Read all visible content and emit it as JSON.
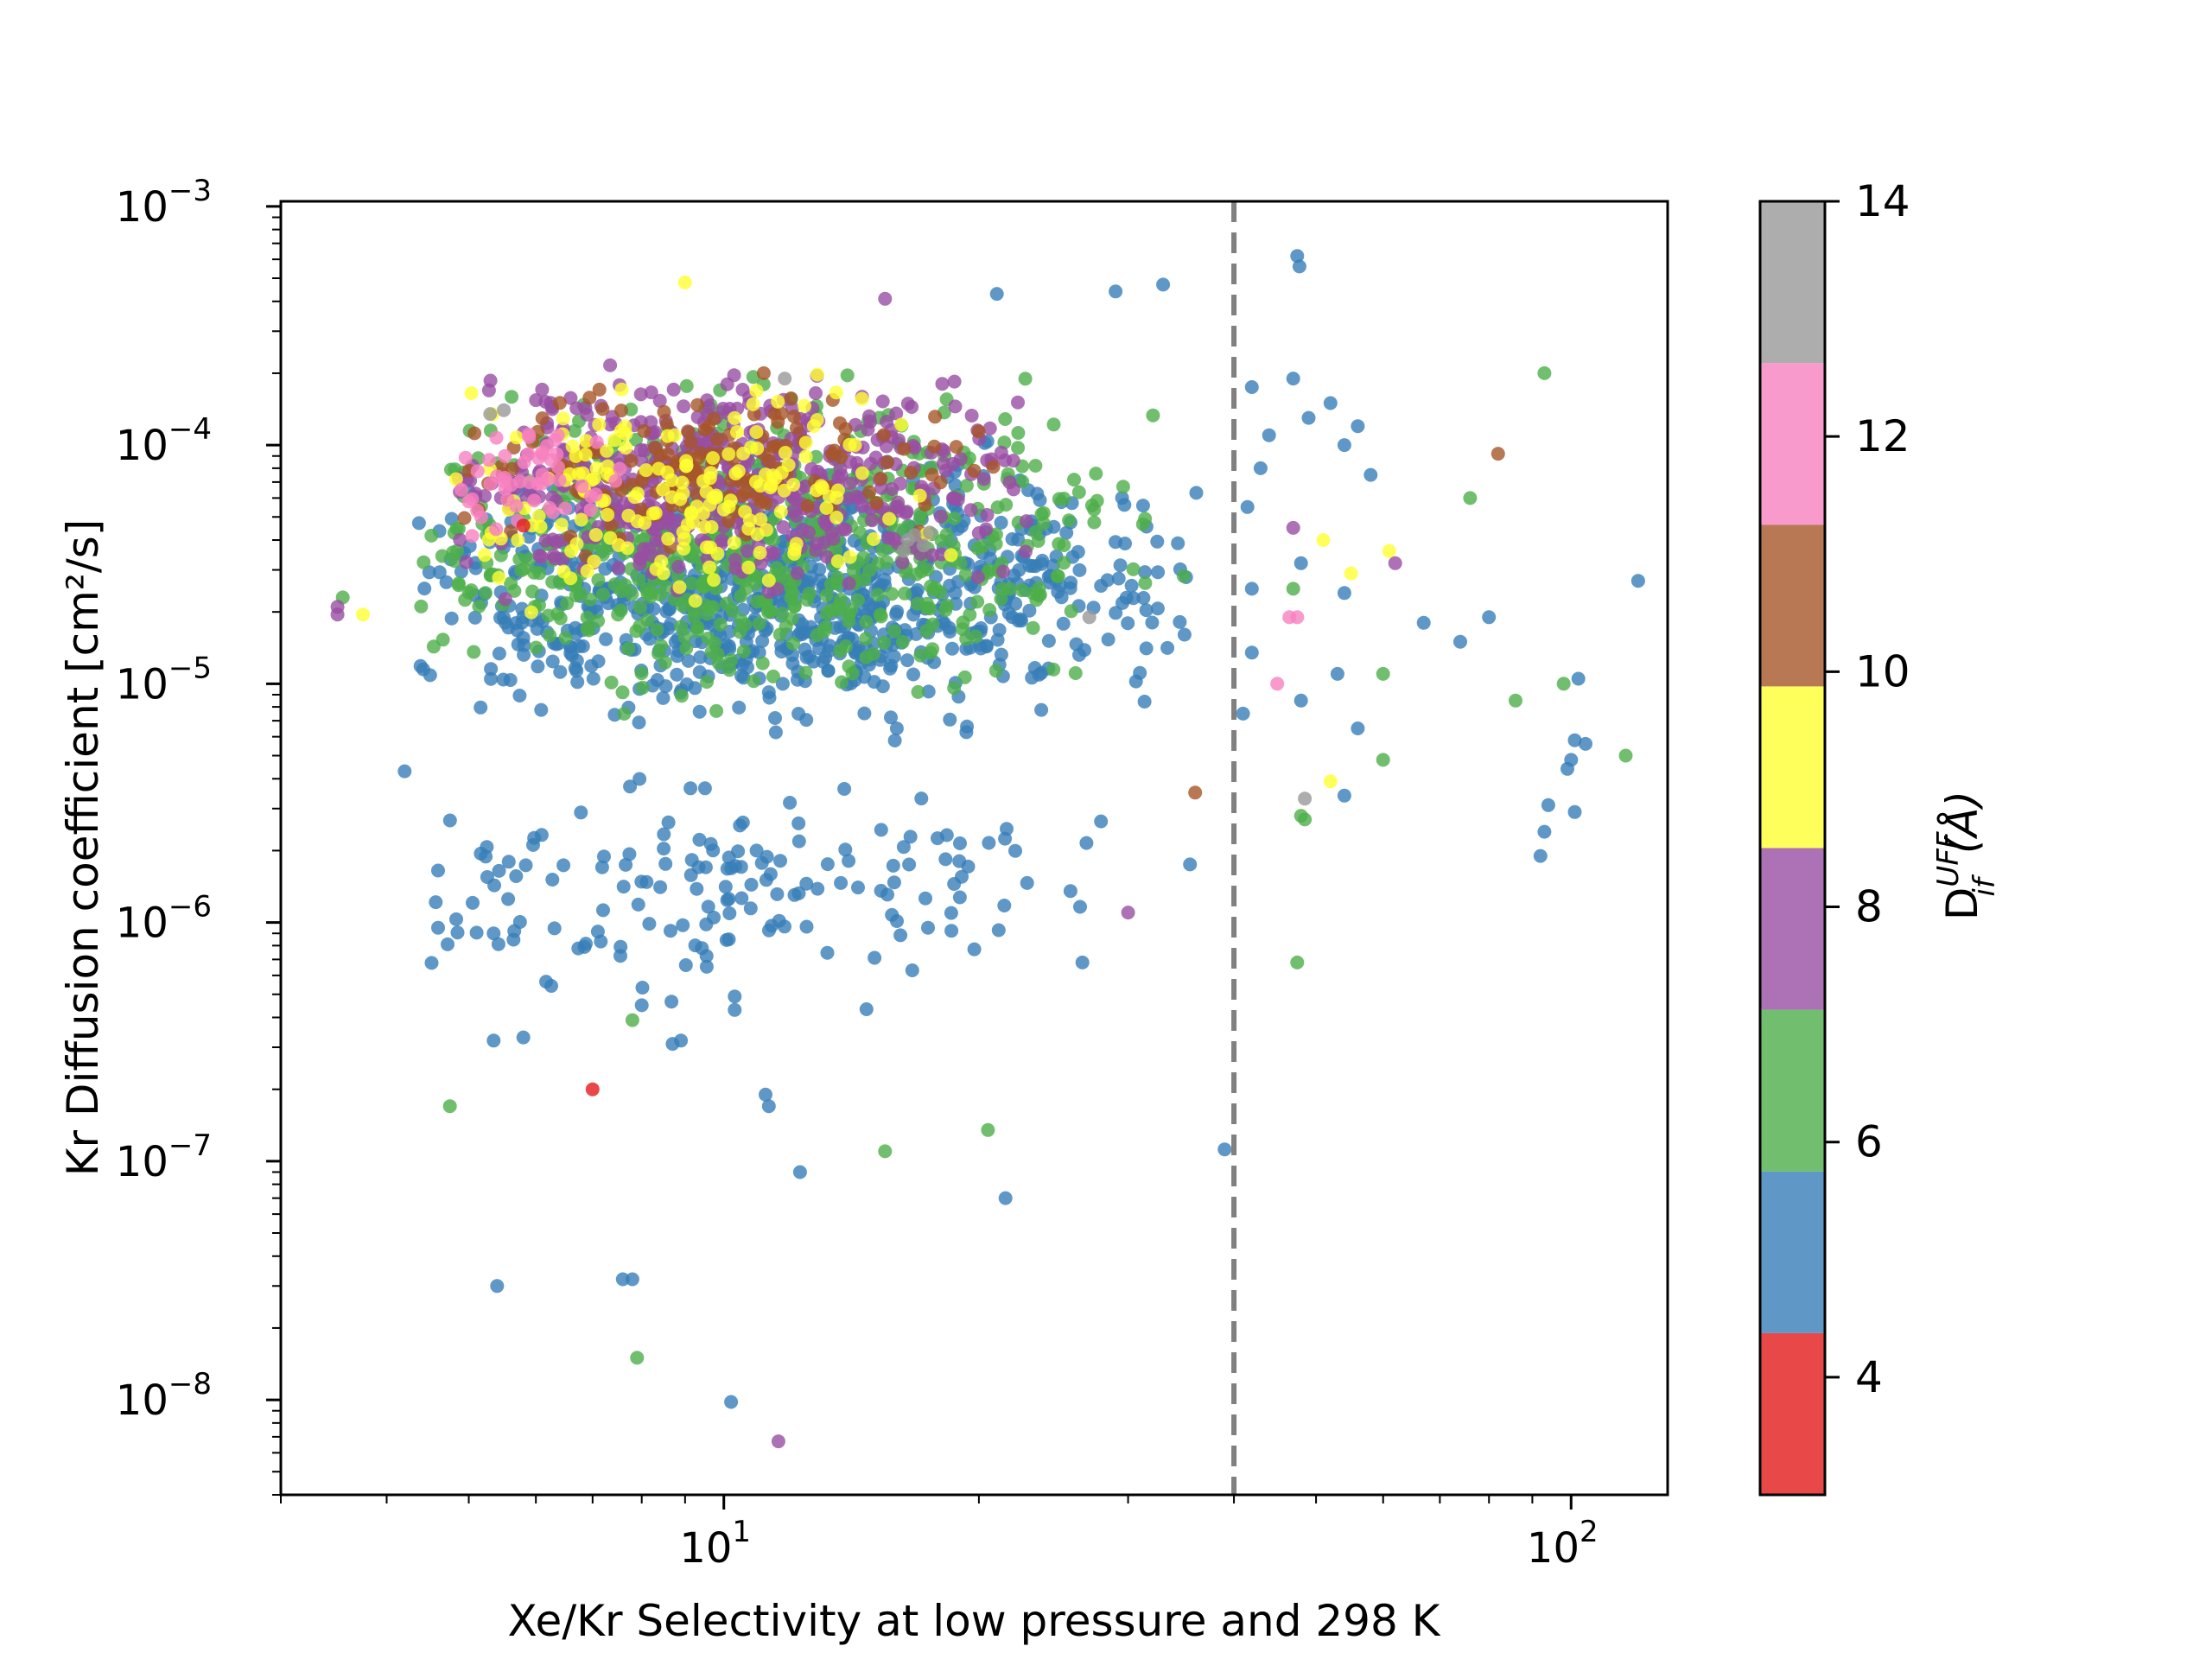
{
  "chart_data": {
    "type": "scatter",
    "xlabel": "Xe/Kr Selectivity at low pressure and 298 K",
    "ylabel": "Kr Diffusion coefficient [cm²/s]",
    "xscale": "log",
    "yscale": "log",
    "xlim": [
      3.0,
      130.0
    ],
    "ylim": [
      4e-09,
      0.00105
    ],
    "x_ticks": [
      {
        "base": "10",
        "exp": "1",
        "value": 10
      },
      {
        "base": "10",
        "exp": "2",
        "value": 100
      }
    ],
    "y_ticks": [
      {
        "base": "10",
        "exp": "−3",
        "value": 0.001
      },
      {
        "base": "10",
        "exp": "−4",
        "value": 0.0001
      },
      {
        "base": "10",
        "exp": "−5",
        "value": 1e-05
      },
      {
        "base": "10",
        "exp": "−6",
        "value": 1e-06
      },
      {
        "base": "10",
        "exp": "−7",
        "value": 1e-07
      },
      {
        "base": "10",
        "exp": "−8",
        "value": 1e-08
      }
    ],
    "reference_line": {
      "x": 40,
      "style": "dashed",
      "color": "#808080"
    },
    "colorbar": {
      "label_main": "D",
      "label_sup": "UFF",
      "label_sub": "if",
      "label_unit": "(Å)",
      "range": [
        3,
        14
      ],
      "ticks": [
        {
          "label": "4",
          "value": 4
        },
        {
          "label": "6",
          "value": 6
        },
        {
          "label": "8",
          "value": 8
        },
        {
          "label": "10",
          "value": 10
        },
        {
          "label": "12",
          "value": 12
        },
        {
          "label": "14",
          "value": 14
        }
      ],
      "bands": [
        {
          "from": 3.0,
          "to": 4.375,
          "color": "#e41a1c"
        },
        {
          "from": 4.375,
          "to": 5.75,
          "color": "#377eb8"
        },
        {
          "from": 5.75,
          "to": 7.125,
          "color": "#4daf4a"
        },
        {
          "from": 7.125,
          "to": 8.5,
          "color": "#984ea3"
        },
        {
          "from": 8.5,
          "to": 9.875,
          "color": "#ffff33"
        },
        {
          "from": 9.875,
          "to": 11.25,
          "color": "#a65628"
        },
        {
          "from": 11.25,
          "to": 12.625,
          "color": "#f781bf"
        },
        {
          "from": 12.625,
          "to": 14.0,
          "color": "#999999"
        }
      ]
    },
    "clusters": [
      {
        "color": "#377eb8",
        "n": 900,
        "x_range": [
          4.3,
          38
        ],
        "y_range": [
          5e-06,
          0.00012
        ],
        "seed": 11
      },
      {
        "color": "#4daf4a",
        "n": 650,
        "x_range": [
          4.3,
          35
        ],
        "y_range": [
          6e-06,
          0.00025
        ],
        "seed": 23
      },
      {
        "color": "#984ea3",
        "n": 520,
        "x_range": [
          4.5,
          25
        ],
        "y_range": [
          2e-05,
          0.00028
        ],
        "seed": 37
      },
      {
        "color": "#a65628",
        "n": 160,
        "x_range": [
          4.6,
          22
        ],
        "y_range": [
          3e-05,
          0.00022
        ],
        "seed": 41
      },
      {
        "color": "#ffff33",
        "n": 180,
        "x_range": [
          4.6,
          22
        ],
        "y_range": [
          1.5e-05,
          0.00025
        ],
        "seed": 53
      },
      {
        "color": "#f781bf",
        "n": 50,
        "x_range": [
          4.6,
          8
        ],
        "y_range": [
          3e-05,
          0.00015
        ],
        "seed": 61
      },
      {
        "color": "#377eb8",
        "n": 160,
        "x_range": [
          4.3,
          30
        ],
        "y_range": [
          3e-07,
          6e-06
        ],
        "seed": 71
      }
    ],
    "points": [
      {
        "x": 47.5,
        "y": 0.00062,
        "c": "#377eb8"
      },
      {
        "x": 47.8,
        "y": 0.00056,
        "c": "#377eb8"
      },
      {
        "x": 9.0,
        "y": 0.00048,
        "c": "#ffff33"
      },
      {
        "x": 33.0,
        "y": 0.00047,
        "c": "#377eb8"
      },
      {
        "x": 29.0,
        "y": 0.00044,
        "c": "#377eb8"
      },
      {
        "x": 21.0,
        "y": 0.00043,
        "c": "#377eb8"
      },
      {
        "x": 15.5,
        "y": 0.00041,
        "c": "#984ea3"
      },
      {
        "x": 93.0,
        "y": 0.0002,
        "c": "#4daf4a"
      },
      {
        "x": 82.0,
        "y": 9.2e-05,
        "c": "#a65628"
      },
      {
        "x": 120.0,
        "y": 2.7e-05,
        "c": "#377eb8"
      },
      {
        "x": 42.0,
        "y": 0.000175,
        "c": "#377eb8"
      },
      {
        "x": 47.0,
        "y": 0.00019,
        "c": "#377eb8"
      },
      {
        "x": 52.0,
        "y": 0.00015,
        "c": "#377eb8"
      },
      {
        "x": 49.0,
        "y": 0.00013,
        "c": "#377eb8"
      },
      {
        "x": 56.0,
        "y": 0.00012,
        "c": "#377eb8"
      },
      {
        "x": 44.0,
        "y": 0.00011,
        "c": "#377eb8"
      },
      {
        "x": 54.0,
        "y": 0.0001,
        "c": "#377eb8"
      },
      {
        "x": 43.0,
        "y": 8e-05,
        "c": "#377eb8"
      },
      {
        "x": 58.0,
        "y": 7.5e-05,
        "c": "#377eb8"
      },
      {
        "x": 76.0,
        "y": 6e-05,
        "c": "#4daf4a"
      },
      {
        "x": 41.5,
        "y": 5.5e-05,
        "c": "#377eb8"
      },
      {
        "x": 47.0,
        "y": 4.5e-05,
        "c": "#984ea3"
      },
      {
        "x": 51.0,
        "y": 4e-05,
        "c": "#ffff33"
      },
      {
        "x": 61.0,
        "y": 3.6e-05,
        "c": "#ffff33"
      },
      {
        "x": 62.0,
        "y": 3.2e-05,
        "c": "#984ea3"
      },
      {
        "x": 55.0,
        "y": 2.9e-05,
        "c": "#ffff33"
      },
      {
        "x": 48.0,
        "y": 3.2e-05,
        "c": "#377eb8"
      },
      {
        "x": 42.0,
        "y": 2.5e-05,
        "c": "#377eb8"
      },
      {
        "x": 54.0,
        "y": 2.4e-05,
        "c": "#377eb8"
      },
      {
        "x": 47.0,
        "y": 2.5e-05,
        "c": "#4daf4a"
      },
      {
        "x": 47.5,
        "y": 1.9e-05,
        "c": "#f781bf"
      },
      {
        "x": 46.5,
        "y": 1.9e-05,
        "c": "#f781bf"
      },
      {
        "x": 67.0,
        "y": 1.8e-05,
        "c": "#377eb8"
      },
      {
        "x": 80.0,
        "y": 1.9e-05,
        "c": "#377eb8"
      },
      {
        "x": 74.0,
        "y": 1.5e-05,
        "c": "#377eb8"
      },
      {
        "x": 42.0,
        "y": 1.35e-05,
        "c": "#377eb8"
      },
      {
        "x": 60.0,
        "y": 1.1e-05,
        "c": "#4daf4a"
      },
      {
        "x": 53.0,
        "y": 1.1e-05,
        "c": "#377eb8"
      },
      {
        "x": 45.0,
        "y": 1e-05,
        "c": "#f781bf"
      },
      {
        "x": 98.0,
        "y": 1e-05,
        "c": "#4daf4a"
      },
      {
        "x": 102.0,
        "y": 1.05e-05,
        "c": "#377eb8"
      },
      {
        "x": 86.0,
        "y": 8.5e-06,
        "c": "#4daf4a"
      },
      {
        "x": 48.0,
        "y": 8.5e-06,
        "c": "#377eb8"
      },
      {
        "x": 41.0,
        "y": 7.5e-06,
        "c": "#377eb8"
      },
      {
        "x": 56.0,
        "y": 6.5e-06,
        "c": "#377eb8"
      },
      {
        "x": 101.0,
        "y": 5.8e-06,
        "c": "#377eb8"
      },
      {
        "x": 104.0,
        "y": 5.6e-06,
        "c": "#377eb8"
      },
      {
        "x": 100.0,
        "y": 4.8e-06,
        "c": "#377eb8"
      },
      {
        "x": 99.0,
        "y": 4.4e-06,
        "c": "#377eb8"
      },
      {
        "x": 116.0,
        "y": 5e-06,
        "c": "#4daf4a"
      },
      {
        "x": 60.0,
        "y": 4.8e-06,
        "c": "#4daf4a"
      },
      {
        "x": 52.0,
        "y": 3.9e-06,
        "c": "#ffff33"
      },
      {
        "x": 54.0,
        "y": 3.4e-06,
        "c": "#377eb8"
      },
      {
        "x": 48.5,
        "y": 3.3e-06,
        "c": "#999999"
      },
      {
        "x": 48.0,
        "y": 2.8e-06,
        "c": "#4daf4a"
      },
      {
        "x": 48.5,
        "y": 2.7e-06,
        "c": "#4daf4a"
      },
      {
        "x": 36.0,
        "y": 3.5e-06,
        "c": "#a65628"
      },
      {
        "x": 101.0,
        "y": 2.9e-06,
        "c": "#377eb8"
      },
      {
        "x": 94.0,
        "y": 3.1e-06,
        "c": "#377eb8"
      },
      {
        "x": 93.0,
        "y": 2.4e-06,
        "c": "#377eb8"
      },
      {
        "x": 92.0,
        "y": 1.9e-06,
        "c": "#377eb8"
      },
      {
        "x": 35.5,
        "y": 1.75e-06,
        "c": "#377eb8"
      },
      {
        "x": 47.5,
        "y": 6.8e-07,
        "c": "#4daf4a"
      },
      {
        "x": 39.0,
        "y": 1.12e-07,
        "c": "#377eb8"
      },
      {
        "x": 3.55,
        "y": 2.3e-05,
        "c": "#4daf4a"
      },
      {
        "x": 3.5,
        "y": 2.1e-05,
        "c": "#984ea3"
      },
      {
        "x": 3.5,
        "y": 1.95e-05,
        "c": "#984ea3"
      },
      {
        "x": 3.75,
        "y": 1.95e-05,
        "c": "#ffff33"
      },
      {
        "x": 4.2,
        "y": 4.3e-06,
        "c": "#377eb8"
      },
      {
        "x": 4.6,
        "y": 1.65e-06,
        "c": "#377eb8"
      },
      {
        "x": 4.6,
        "y": 9.5e-07,
        "c": "#377eb8"
      },
      {
        "x": 5.35,
        "y": 9e-07,
        "c": "#377eb8"
      },
      {
        "x": 5.35,
        "y": 3.2e-07,
        "c": "#377eb8"
      },
      {
        "x": 5.8,
        "y": 3.3e-07,
        "c": "#377eb8"
      },
      {
        "x": 4.75,
        "y": 1.7e-07,
        "c": "#4daf4a"
      },
      {
        "x": 7.0,
        "y": 2e-07,
        "c": "#e41a1c"
      },
      {
        "x": 5.8,
        "y": 4.6e-05,
        "c": "#e41a1c"
      },
      {
        "x": 5.4,
        "y": 3e-08,
        "c": "#377eb8"
      },
      {
        "x": 7.6,
        "y": 3.2e-08,
        "c": "#377eb8"
      },
      {
        "x": 7.8,
        "y": 3.2e-08,
        "c": "#377eb8"
      },
      {
        "x": 7.9,
        "y": 1.5e-08,
        "c": "#4daf4a"
      },
      {
        "x": 10.2,
        "y": 9.8e-09,
        "c": "#377eb8"
      },
      {
        "x": 11.6,
        "y": 6.7e-09,
        "c": "#984ea3"
      },
      {
        "x": 12.3,
        "y": 9e-08,
        "c": "#377eb8"
      },
      {
        "x": 21.5,
        "y": 7e-08,
        "c": "#377eb8"
      },
      {
        "x": 15.5,
        "y": 1.1e-07,
        "c": "#4daf4a"
      },
      {
        "x": 20.5,
        "y": 1.35e-07,
        "c": "#4daf4a"
      },
      {
        "x": 11.2,
        "y": 1.9e-07,
        "c": "#377eb8"
      },
      {
        "x": 11.3,
        "y": 1.7e-07,
        "c": "#377eb8"
      },
      {
        "x": 8.7,
        "y": 3.1e-07,
        "c": "#377eb8"
      },
      {
        "x": 8.9,
        "y": 3.2e-07,
        "c": "#377eb8"
      },
      {
        "x": 7.8,
        "y": 3.9e-07,
        "c": "#4daf4a"
      },
      {
        "x": 8.0,
        "y": 4.5e-07,
        "c": "#377eb8"
      },
      {
        "x": 10.3,
        "y": 4.9e-07,
        "c": "#377eb8"
      },
      {
        "x": 10.3,
        "y": 4.3e-07,
        "c": "#377eb8"
      },
      {
        "x": 26.5,
        "y": 6.8e-07,
        "c": "#377eb8"
      },
      {
        "x": 30.0,
        "y": 1.1e-06,
        "c": "#984ea3"
      },
      {
        "x": 16.0,
        "y": 6.5e-06,
        "c": "#377eb8"
      },
      {
        "x": 16.5,
        "y": 4e-05,
        "c": "#999999"
      },
      {
        "x": 16.8,
        "y": 4.2e-05,
        "c": "#999999"
      },
      {
        "x": 17.2,
        "y": 3.8e-05,
        "c": "#999999"
      },
      {
        "x": 16.3,
        "y": 3.6e-05,
        "c": "#999999"
      },
      {
        "x": 17.5,
        "y": 4.3e-05,
        "c": "#999999"
      },
      {
        "x": 5.3,
        "y": 0.000135,
        "c": "#999999"
      },
      {
        "x": 5.5,
        "y": 0.00014,
        "c": "#999999"
      },
      {
        "x": 11.8,
        "y": 0.00019,
        "c": "#999999"
      },
      {
        "x": 27.0,
        "y": 1.9e-05,
        "c": "#999999"
      },
      {
        "x": 5.0,
        "y": 5.8e-05,
        "c": "#f781bf"
      },
      {
        "x": 4.9,
        "y": 6.5e-05,
        "c": "#f781bf"
      }
    ]
  }
}
